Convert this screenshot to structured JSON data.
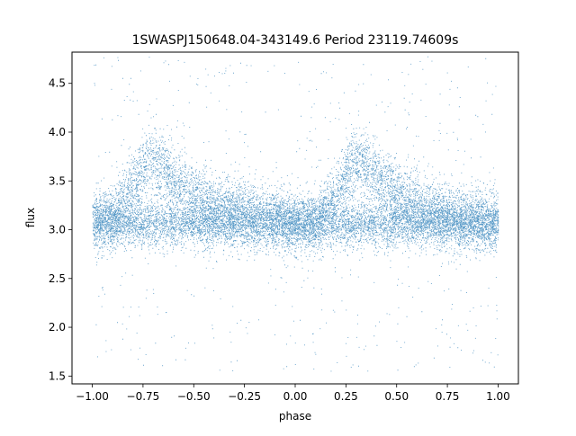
{
  "chart_data": {
    "type": "scatter",
    "title": "1SWASPJ150648.04-343149.6 Period 23119.74609s",
    "xlabel": "phase",
    "ylabel": "flux",
    "xlim": [
      -1.1,
      1.1
    ],
    "ylim": [
      1.42,
      4.82
    ],
    "x_ticks": [
      -1.0,
      -0.75,
      -0.5,
      -0.25,
      0.0,
      0.25,
      0.5,
      0.75,
      1.0
    ],
    "x_tick_labels": [
      "−1.00",
      "−0.75",
      "−0.50",
      "−0.25",
      "0.00",
      "0.25",
      "0.50",
      "0.75",
      "1.00"
    ],
    "y_ticks": [
      1.5,
      2.0,
      2.5,
      3.0,
      3.5,
      4.0,
      4.5
    ],
    "y_tick_labels": [
      "1.5",
      "2.0",
      "2.5",
      "3.0",
      "3.5",
      "4.0",
      "4.5"
    ],
    "grid": false,
    "point_color": "#1f77b4",
    "series": [
      {
        "phase_range": [
          -1.0,
          1.0
        ],
        "baseline_flux": 3.07,
        "peak_flux": 3.72,
        "peak_phases": [
          -0.7,
          0.3
        ],
        "core_spread": [
          2.8,
          3.4
        ],
        "outlier_range": [
          1.55,
          4.8
        ],
        "x": [
          -1.0,
          -0.9,
          -0.8,
          -0.75,
          -0.7,
          -0.65,
          -0.6,
          -0.5,
          -0.4,
          -0.3,
          -0.2,
          -0.1,
          0.0,
          0.1,
          0.2,
          0.25,
          0.3,
          0.35,
          0.4,
          0.5,
          0.6,
          0.7,
          0.8,
          0.9,
          1.0
        ],
        "y": [
          3.1,
          3.12,
          3.45,
          3.65,
          3.72,
          3.65,
          3.5,
          3.35,
          3.25,
          3.2,
          3.17,
          3.12,
          3.07,
          3.08,
          3.35,
          3.6,
          3.72,
          3.68,
          3.55,
          3.38,
          3.25,
          3.18,
          3.15,
          3.12,
          3.1
        ]
      }
    ]
  }
}
